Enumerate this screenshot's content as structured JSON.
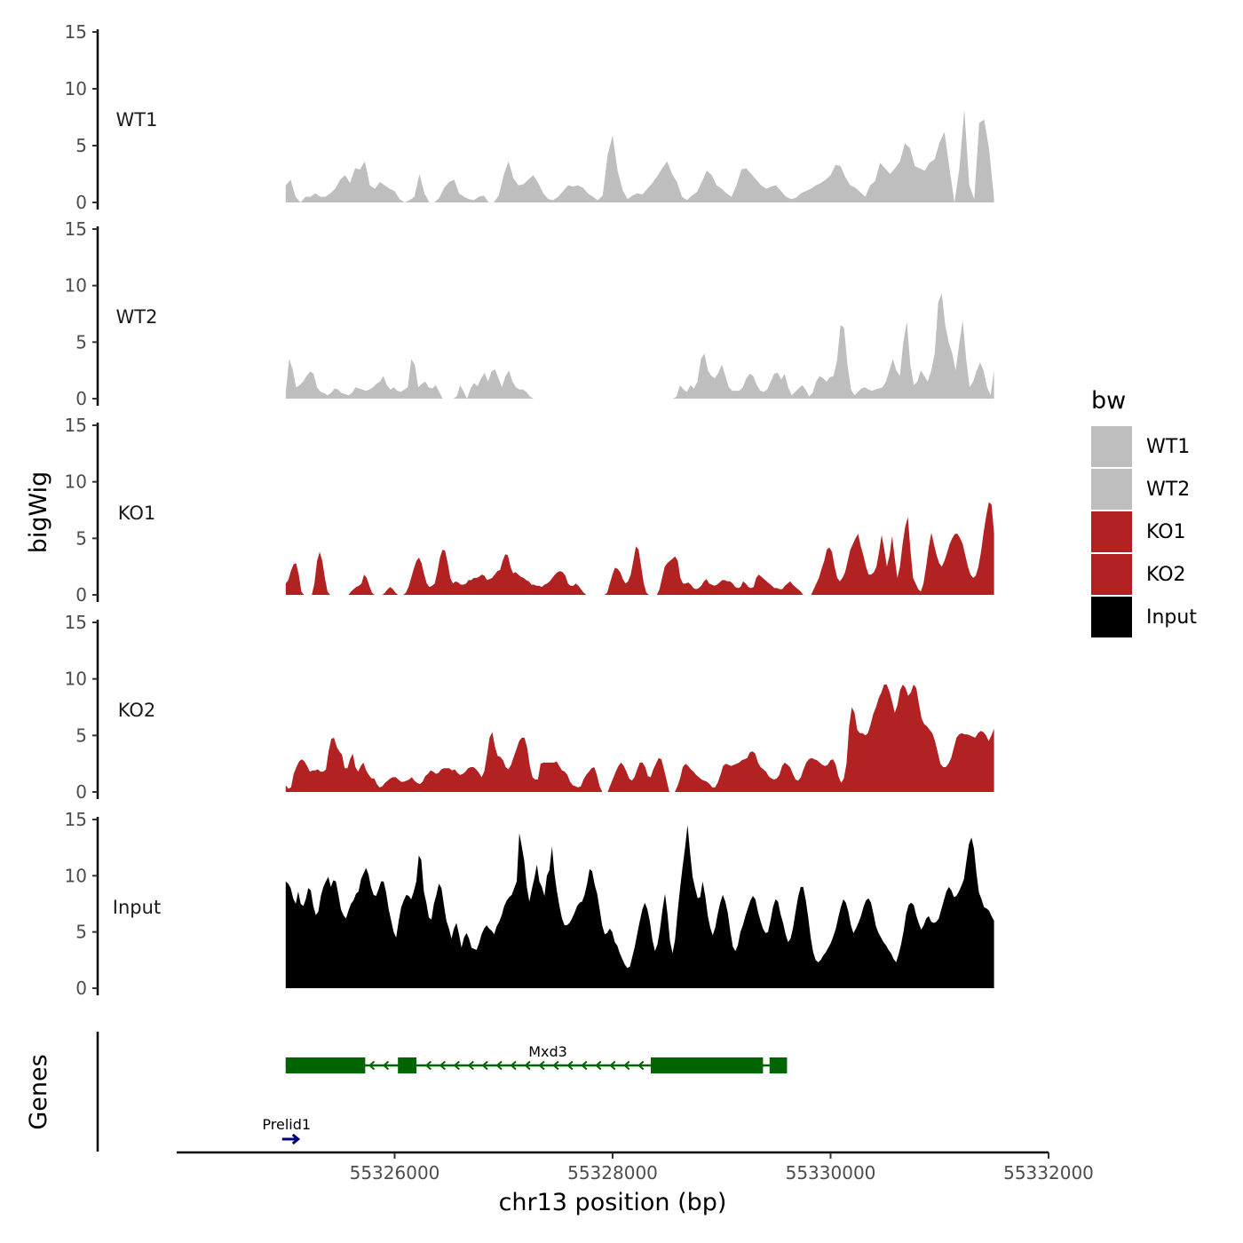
{
  "chart_data": {
    "type": "area",
    "chromosome_axis_title": "chr13 position (bp)",
    "ylabel": "bigWig",
    "genes_panel_label": "Genes",
    "xlim": [
      55324000,
      55332000
    ],
    "x_ticks": [
      55326000,
      55328000,
      55330000,
      55332000
    ],
    "x_tick_labels": [
      "55326000",
      "55328000",
      "55330000",
      "55332000"
    ],
    "ylim": [
      0,
      15
    ],
    "y_ticks": [
      0,
      5,
      10,
      15
    ],
    "y_tick_labels": [
      "0",
      "5",
      "10",
      "15"
    ],
    "track_x_range": [
      55325000,
      55331500
    ],
    "legend": {
      "title": "bw",
      "placement": "right",
      "entries": [
        {
          "label": "WT1",
          "color": "#bebebe"
        },
        {
          "label": "WT2",
          "color": "#bebebe"
        },
        {
          "label": "KO1",
          "color": "#b22222"
        },
        {
          "label": "KO2",
          "color": "#b22222"
        },
        {
          "label": "Input",
          "color": "#000000"
        }
      ]
    },
    "series": [
      {
        "name": "WT1",
        "color": "#bebebe",
        "values": [
          1.5,
          2.0,
          0.5,
          0.0,
          0.5,
          0.5,
          0.8,
          0.5,
          0.5,
          0.8,
          1.2,
          2.0,
          2.4,
          1.7,
          3.0,
          2.9,
          3.6,
          1.5,
          1.2,
          1.8,
          1.5,
          1.2,
          1.0,
          0.3,
          0.0,
          0.2,
          0.5,
          2.5,
          0.8,
          0.0,
          0.0,
          0.4,
          1.3,
          1.8,
          2.0,
          0.8,
          0.5,
          0.3,
          0.2,
          0.5,
          0.6,
          0.0,
          0.0,
          0.6,
          2.4,
          3.6,
          2.1,
          1.5,
          1.6,
          2.0,
          2.4,
          1.7,
          0.8,
          0.3,
          0.2,
          0.5,
          1.0,
          1.5,
          1.4,
          1.5,
          1.3,
          0.8,
          0.5,
          0.2,
          0.6,
          4.2,
          5.9,
          2.8,
          1.1,
          0.3,
          0.6,
          0.8,
          0.7,
          1.2,
          1.7,
          2.3,
          3.0,
          3.6,
          2.5,
          1.8,
          0.5,
          0.2,
          0.6,
          0.9,
          1.8,
          2.8,
          2.4,
          1.5,
          1.2,
          0.8,
          0.5,
          1.5,
          2.9,
          3.0,
          2.5,
          2.0,
          1.5,
          1.2,
          1.4,
          1.5,
          1.0,
          0.5,
          0.3,
          0.4,
          0.8,
          1.0,
          1.2,
          1.5,
          1.7,
          2.0,
          2.4,
          3.3,
          3.2,
          2.2,
          1.5,
          1.3,
          0.9,
          0.5,
          1.5,
          1.9,
          3.5,
          3.0,
          2.5,
          3.0,
          3.6,
          5.2,
          4.8,
          3.2,
          3.0,
          2.8,
          3.5,
          3.8,
          5.3,
          6.2,
          3.0,
          0.0,
          3.0,
          8.2,
          1.5,
          0.3,
          7.0,
          7.3,
          4.7,
          0.3
        ]
      },
      {
        "name": "WT2",
        "color": "#bebebe",
        "values": [
          0.5,
          3.5,
          2.6,
          1.0,
          1.2,
          1.5,
          2.0,
          2.4,
          2.2,
          1.0,
          0.6,
          0.5,
          0.3,
          0.5,
          0.9,
          0.8,
          0.5,
          0.4,
          0.3,
          0.5,
          1.0,
          0.9,
          0.8,
          0.7,
          0.8,
          1.0,
          1.3,
          1.5,
          2.0,
          1.2,
          0.8,
          1.0,
          0.7,
          0.6,
          0.8,
          1.0,
          3.5,
          3.0,
          1.0,
          1.3,
          1.5,
          1.0,
          0.9,
          1.2,
          0.6,
          0.0,
          0.0,
          0.0,
          0.0,
          0.2,
          1.2,
          0.6,
          0.0,
          0.9,
          1.4,
          1.1,
          1.8,
          2.3,
          1.5,
          2.4,
          2.6,
          1.8,
          1.0,
          2.0,
          2.5,
          1.5,
          1.0,
          0.8,
          0.8,
          0.6,
          0.2,
          0.0,
          0.0,
          0.0,
          0.0,
          0.0,
          0.0,
          0.0,
          0.0,
          0.0,
          0.0,
          0.0,
          0.0,
          0.0,
          0.0,
          0.0,
          0.0,
          0.0,
          0.0,
          0.0,
          0.0,
          0.0,
          0.0,
          0.0,
          0.0,
          0.0,
          0.0,
          0.0,
          0.0,
          0.0,
          0.0,
          0.0,
          0.0,
          0.0,
          0.0,
          0.0,
          0.0,
          0.0,
          0.0,
          0.0,
          0.0,
          0.0,
          0.2,
          1.2,
          0.8,
          0.6,
          1.2,
          0.9,
          1.5,
          3.5,
          4.0,
          2.5,
          2.0,
          1.8,
          2.3,
          3.0,
          2.0,
          1.0,
          0.7,
          0.7,
          0.7,
          1.0,
          1.8,
          2.2,
          2.0,
          1.2,
          0.7,
          0.6,
          0.8,
          1.5,
          2.2,
          2.3,
          1.7,
          2.2,
          1.0,
          0.3,
          0.6,
          0.9,
          1.2,
          0.8,
          0.2,
          0.5,
          1.5,
          2.0,
          1.8,
          1.5,
          1.9,
          2.0,
          3.4,
          6.5,
          6.3,
          3.0,
          0.8,
          0.3,
          0.6,
          0.9,
          1.0,
          0.8,
          0.7,
          0.8,
          0.9,
          1.0,
          1.5,
          2.5,
          3.5,
          2.5,
          2.0,
          5.0,
          6.8,
          3.0,
          1.2,
          1.5,
          2.5,
          2.0,
          1.5,
          2.5,
          4.0,
          8.5,
          9.3,
          6.5,
          5.0,
          4.0,
          2.5,
          4.8,
          6.9,
          3.5,
          1.0,
          1.5,
          2.5,
          3.2,
          2.5,
          1.0,
          0.3,
          2.5
        ]
      },
      {
        "name": "KO1",
        "color": "#b22222",
        "values": [
          1.0,
          1.3,
          2.1,
          2.7,
          2.8,
          1.8,
          0.3,
          0.0,
          0.0,
          0.0,
          0.0,
          1.0,
          3.0,
          3.8,
          3.0,
          1.5,
          0.3,
          0.0,
          0.0,
          0.0,
          0.0,
          0.0,
          0.0,
          0.0,
          0.0,
          0.3,
          0.5,
          0.7,
          0.8,
          1.0,
          1.8,
          1.5,
          0.8,
          0.2,
          0.0,
          0.0,
          0.0,
          0.0,
          0.2,
          0.5,
          0.7,
          0.5,
          0.2,
          0.0,
          0.0,
          0.0,
          0.2,
          0.7,
          1.5,
          2.3,
          3.0,
          3.3,
          2.8,
          1.8,
          1.0,
          0.7,
          0.8,
          1.0,
          2.0,
          3.3,
          4.0,
          3.9,
          2.8,
          1.5,
          1.0,
          1.2,
          1.1,
          0.9,
          0.9,
          1.0,
          1.3,
          1.3,
          1.5,
          1.5,
          1.6,
          1.8,
          1.7,
          1.3,
          1.4,
          1.5,
          1.8,
          2.1,
          2.2,
          3.0,
          3.6,
          3.5,
          2.5,
          1.9,
          2.0,
          1.8,
          1.6,
          1.5,
          1.3,
          1.2,
          0.9,
          0.9,
          0.8,
          0.8,
          0.7,
          0.9,
          1.0,
          1.2,
          1.5,
          1.8,
          2.0,
          2.1,
          2.0,
          1.7,
          1.0,
          0.8,
          0.8,
          1.0,
          0.8,
          0.5,
          0.2,
          0.0,
          0.0,
          0.0,
          0.0,
          0.0,
          0.0,
          0.0,
          0.0,
          0.2,
          1.0,
          1.8,
          2.4,
          2.3,
          2.0,
          1.4,
          1.0,
          1.2,
          1.8,
          3.0,
          4.3,
          4.0,
          2.5,
          1.0,
          0.2,
          0.0,
          0.0,
          0.0,
          0.0,
          0.5,
          1.5,
          2.5,
          2.8,
          3.0,
          3.2,
          3.4,
          3.0,
          1.5,
          1.0,
          1.0,
          1.1,
          0.9,
          0.6,
          0.5,
          0.6,
          0.8,
          1.2,
          1.4,
          1.0,
          0.9,
          0.8,
          0.9,
          1.1,
          1.3,
          1.3,
          1.2,
          1.2,
          1.0,
          0.7,
          0.6,
          0.7,
          1.2,
          1.0,
          0.7,
          0.6,
          0.7,
          1.5,
          1.8,
          1.6,
          1.4,
          1.2,
          1.0,
          0.8,
          0.6,
          0.6,
          0.5,
          0.5,
          0.8,
          1.0,
          1.2,
          0.9,
          0.7,
          0.5,
          0.3,
          0.0,
          0.0,
          0.0,
          0.0,
          0.5,
          1.0,
          1.5,
          2.3,
          3.0,
          4.0,
          4.2,
          3.8,
          2.5,
          1.5,
          1.2,
          1.5,
          2.0,
          3.0,
          4.0,
          4.5,
          5.0,
          5.4,
          4.3,
          3.5,
          2.5,
          1.8,
          1.8,
          2.0,
          2.5,
          3.8,
          5.3,
          4.0,
          2.5,
          3.5,
          5.2,
          3.3,
          1.5,
          2.5,
          4.5,
          6.0,
          6.9,
          4.0,
          1.5,
          1.0,
          0.5,
          0.3,
          1.0,
          2.5,
          4.2,
          5.5,
          4.5,
          3.5,
          2.8,
          2.5,
          3.0,
          3.7,
          4.5,
          5.0,
          5.4,
          5.4,
          5.0,
          4.5,
          3.5,
          2.5,
          1.8,
          1.5,
          1.7,
          2.5,
          3.8,
          5.5,
          7.0,
          8.2,
          8.0,
          5.5
        ]
      },
      {
        "name": "KO2",
        "color": "#b22222",
        "values": [
          0.6,
          0.3,
          0.4,
          1.6,
          2.2,
          2.7,
          2.9,
          2.7,
          2.3,
          1.8,
          1.9,
          1.9,
          2.0,
          1.8,
          1.8,
          2.0,
          3.6,
          4.7,
          4.8,
          4.0,
          3.6,
          3.3,
          2.1,
          2.1,
          2.9,
          3.4,
          2.2,
          1.8,
          2.3,
          2.6,
          1.9,
          1.5,
          1.2,
          1.2,
          0.7,
          0.4,
          0.5,
          0.8,
          1.0,
          1.2,
          1.3,
          1.3,
          1.1,
          0.9,
          0.9,
          1.0,
          1.1,
          1.3,
          1.0,
          0.8,
          0.7,
          0.9,
          1.4,
          1.6,
          1.9,
          1.8,
          1.6,
          1.7,
          2.0,
          2.1,
          2.1,
          2.1,
          1.9,
          2.0,
          1.7,
          1.5,
          1.6,
          1.8,
          2.1,
          2.2,
          2.2,
          2.0,
          1.7,
          1.3,
          1.8,
          3.2,
          4.8,
          5.3,
          4.0,
          3.2,
          3.1,
          2.8,
          2.2,
          2.0,
          2.4,
          3.1,
          3.8,
          4.5,
          4.8,
          4.8,
          3.9,
          2.3,
          1.3,
          1.1,
          1.1,
          2.5,
          2.6,
          2.6,
          2.6,
          2.6,
          2.6,
          2.7,
          2.3,
          1.9,
          1.8,
          1.5,
          0.9,
          0.6,
          0.5,
          0.4,
          0.5,
          1.1,
          1.5,
          1.8,
          2.1,
          2.2,
          1.5,
          0.5,
          0.0,
          0.0,
          0.0,
          0.6,
          1.2,
          1.8,
          2.3,
          2.6,
          2.3,
          1.8,
          1.2,
          1.0,
          1.3,
          2.0,
          2.6,
          2.6,
          2.2,
          1.4,
          1.3,
          2.0,
          2.5,
          3.0,
          2.9,
          2.0,
          1.0,
          0.0,
          0.0,
          0.0,
          0.5,
          1.2,
          2.2,
          2.5,
          2.3,
          2.0,
          1.8,
          1.5,
          1.3,
          1.1,
          1.0,
          0.9,
          0.7,
          0.4,
          0.4,
          0.8,
          1.5,
          2.3,
          2.5,
          2.4,
          2.3,
          2.4,
          2.5,
          2.6,
          2.8,
          2.9,
          3.0,
          3.5,
          3.6,
          3.4,
          2.6,
          2.2,
          2.0,
          1.8,
          1.4,
          1.2,
          1.1,
          1.2,
          1.5,
          2.3,
          2.6,
          2.4,
          2.2,
          1.6,
          1.1,
          1.0,
          1.3,
          2.0,
          2.6,
          2.9,
          3.0,
          2.9,
          2.8,
          2.6,
          2.4,
          2.3,
          2.4,
          2.8,
          2.9,
          2.4,
          1.4,
          0.8,
          1.2,
          2.5,
          5.8,
          7.5,
          7.0,
          5.5,
          5.2,
          5.2,
          5.0,
          5.2,
          6.0,
          6.9,
          7.5,
          8.3,
          8.8,
          9.5,
          9.5,
          8.9,
          8.0,
          7.0,
          7.7,
          9.0,
          9.5,
          9.2,
          8.5,
          8.8,
          9.5,
          9.2,
          7.8,
          6.5,
          6.0,
          5.8,
          5.5,
          5.2,
          4.5,
          3.5,
          2.5,
          2.2,
          2.2,
          2.5,
          3.0,
          3.9,
          4.8,
          5.1,
          5.2,
          5.1,
          5.1,
          5.0,
          4.9,
          4.8,
          5.2,
          5.4,
          5.3,
          5.0,
          4.5,
          5.0,
          5.6
        ]
      },
      {
        "name": "Input",
        "color": "#000000",
        "values": [
          9.5,
          9.3,
          8.9,
          8.0,
          7.5,
          8.6,
          7.5,
          7.3,
          7.9,
          8.9,
          8.7,
          7.3,
          6.5,
          6.8,
          8.2,
          9.0,
          9.5,
          9.9,
          9.0,
          9.6,
          9.5,
          8.3,
          7.0,
          6.5,
          6.2,
          6.9,
          7.5,
          7.8,
          8.4,
          8.6,
          9.7,
          10.2,
          10.7,
          10.1,
          9.0,
          8.3,
          8.2,
          8.8,
          9.5,
          9.5,
          8.5,
          7.0,
          6.0,
          5.0,
          4.5,
          6.0,
          7.2,
          7.8,
          8.3,
          8.2,
          7.9,
          8.6,
          9.5,
          11.8,
          11.4,
          8.6,
          7.6,
          6.3,
          6.1,
          7.5,
          8.3,
          9.3,
          8.9,
          7.4,
          6.0,
          5.3,
          4.4,
          5.3,
          5.8,
          4.8,
          3.6,
          4.5,
          4.9,
          4.4,
          3.6,
          3.5,
          3.4,
          4.0,
          4.8,
          5.3,
          5.6,
          5.3,
          5.1,
          4.8,
          5.5,
          5.9,
          6.5,
          7.3,
          7.8,
          8.1,
          8.3,
          8.9,
          9.5,
          13.8,
          12.6,
          11.3,
          9.0,
          7.7,
          8.8,
          9.8,
          11.0,
          9.5,
          9.0,
          8.2,
          10.0,
          10.5,
          12.6,
          10.2,
          8.6,
          7.3,
          6.2,
          5.6,
          5.6,
          5.8,
          6.2,
          6.7,
          7.3,
          7.6,
          7.7,
          8.3,
          9.3,
          10.6,
          10.4,
          9.2,
          8.4,
          7.0,
          5.6,
          4.8,
          4.9,
          5.3,
          5.0,
          4.1,
          3.8,
          3.1,
          2.6,
          2.1,
          1.8,
          1.9,
          2.8,
          3.7,
          4.9,
          6.0,
          7.0,
          7.6,
          7.0,
          5.9,
          4.3,
          3.3,
          3.9,
          5.2,
          7.0,
          8.4,
          6.6,
          4.2,
          3.1,
          4.3,
          6.7,
          8.9,
          10.8,
          12.5,
          14.5,
          12.0,
          9.9,
          8.9,
          8.0,
          8.1,
          9.5,
          8.2,
          6.5,
          5.4,
          4.7,
          5.4,
          6.6,
          7.6,
          8.3,
          7.7,
          6.7,
          5.1,
          3.7,
          3.3,
          3.8,
          5.0,
          5.6,
          6.4,
          7.1,
          7.8,
          8.2,
          7.9,
          6.8,
          6.0,
          5.3,
          4.9,
          5.0,
          6.0,
          7.2,
          7.9,
          7.7,
          6.6,
          5.8,
          4.8,
          4.1,
          4.4,
          5.4,
          6.8,
          8.1,
          9.0,
          9.0,
          7.9,
          6.3,
          4.5,
          3.2,
          2.5,
          2.3,
          2.5,
          2.9,
          3.2,
          3.6,
          4.0,
          4.6,
          5.3,
          6.3,
          7.2,
          7.9,
          7.6,
          6.8,
          5.6,
          4.9,
          5.3,
          5.8,
          6.4,
          7.2,
          7.8,
          8.0,
          7.6,
          6.6,
          5.5,
          4.9,
          4.5,
          4.1,
          3.8,
          3.4,
          3.1,
          2.6,
          2.3,
          3.0,
          3.9,
          5.1,
          6.6,
          7.4,
          7.6,
          7.4,
          6.5,
          5.8,
          5.2,
          5.6,
          6.2,
          6.4,
          5.9,
          5.8,
          5.9,
          6.2,
          7.0,
          7.8,
          8.6,
          9.0,
          8.7,
          8.1,
          8.2,
          8.6,
          9.1,
          9.7,
          11.3,
          12.8,
          13.4,
          12.4,
          10.2,
          8.5,
          7.9,
          7.2,
          7.1,
          6.9,
          6.4,
          6.0
        ]
      }
    ],
    "genes": [
      {
        "name": "Mxd3",
        "strand": "-",
        "color": "#006400",
        "start": 55325000,
        "end": 55329600,
        "exons": [
          [
            55325000,
            55325730
          ],
          [
            55326030,
            55326200
          ],
          [
            55328350,
            55329380
          ],
          [
            55329440,
            55329600
          ]
        ],
        "label_pos": 55328000
      },
      {
        "name": "Prelid1",
        "strand": "+",
        "color": "#00008b",
        "start": 55325000,
        "end": 55325080,
        "exons": [],
        "label_pos": 55325000
      }
    ]
  }
}
